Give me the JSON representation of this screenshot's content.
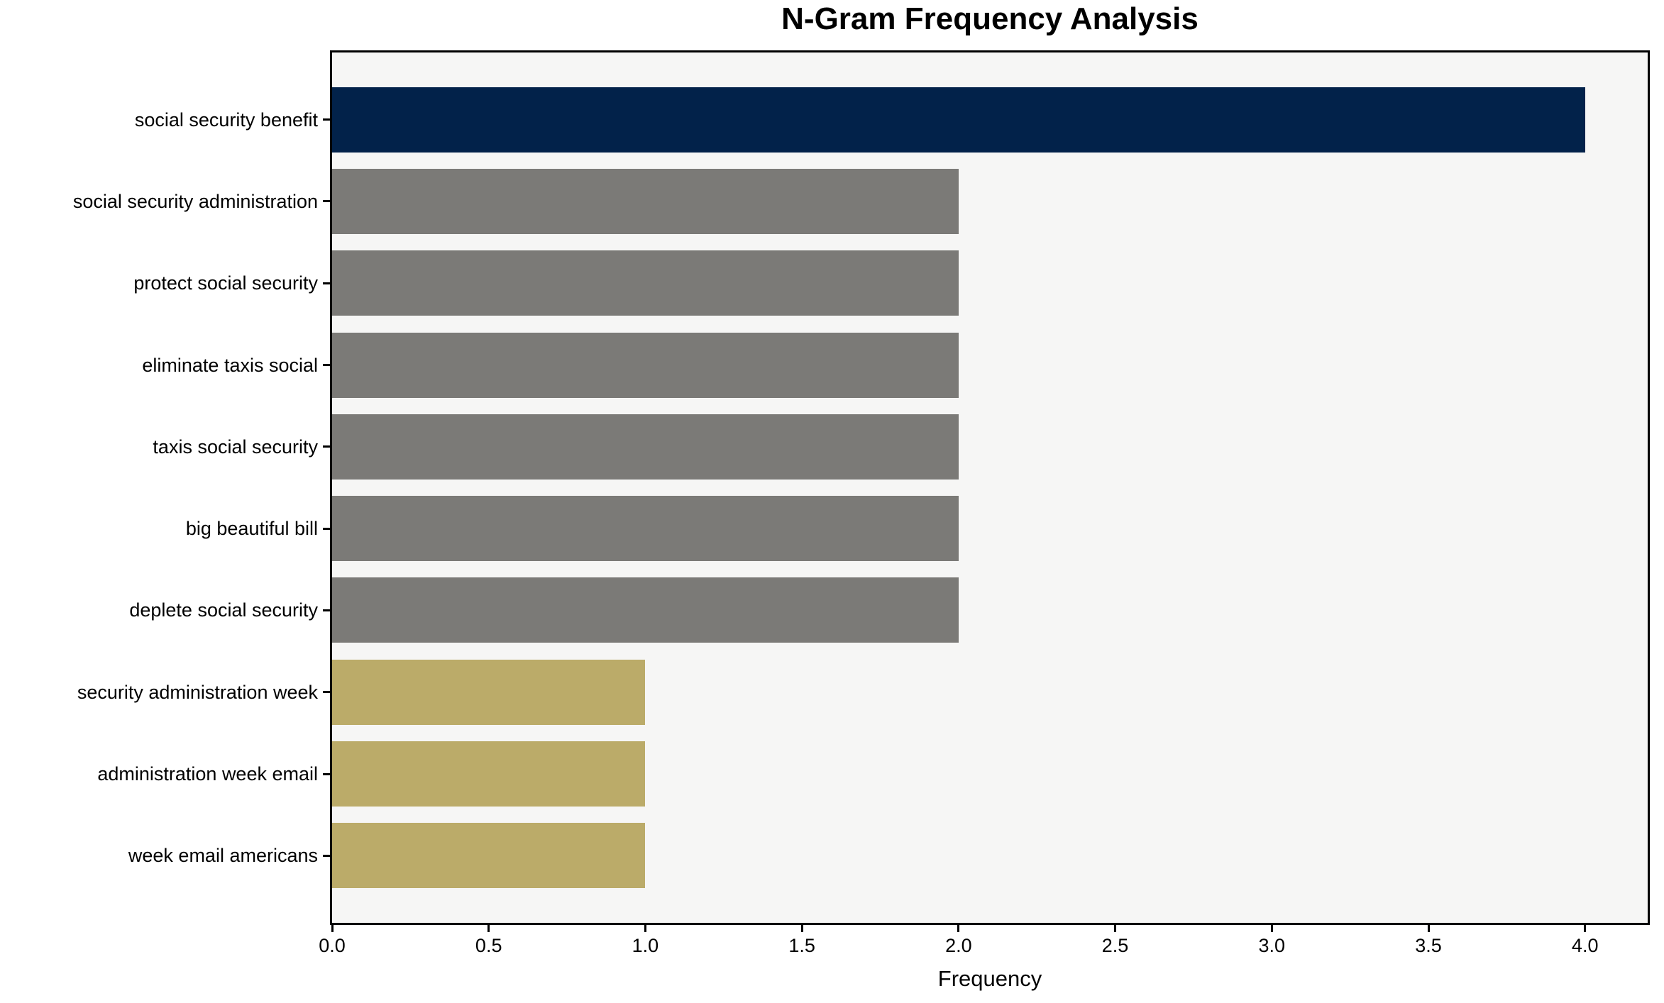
{
  "chart_data": {
    "type": "bar",
    "orientation": "horizontal",
    "title": "N-Gram Frequency Analysis",
    "xlabel": "Frequency",
    "ylabel": "",
    "categories": [
      "social security benefit",
      "social security administration",
      "protect social security",
      "eliminate taxis social",
      "taxis social security",
      "big beautiful bill",
      "deplete social security",
      "security administration week",
      "administration week email",
      "week email americans"
    ],
    "values": [
      4,
      2,
      2,
      2,
      2,
      2,
      2,
      1,
      1,
      1
    ],
    "bar_colors": [
      "#02224A",
      "#7B7A77",
      "#7B7A77",
      "#7B7A77",
      "#7B7A77",
      "#7B7A77",
      "#7B7A77",
      "#BBAB69",
      "#BBAB69",
      "#BBAB69"
    ],
    "xlim": [
      0,
      4.2
    ],
    "xticks": [
      0,
      0.5,
      1,
      1.5,
      2,
      2.5,
      3,
      3.5,
      4
    ],
    "xtick_labels": [
      "0.0",
      "0.5",
      "1.0",
      "1.5",
      "2.0",
      "2.5",
      "3.0",
      "3.5",
      "4.0"
    ],
    "grid": false,
    "legend_position": "none",
    "colors": {
      "plot_background": "#F6F6F5",
      "figure_background": "#FFFFFF",
      "frame": "#000000",
      "text": "#000000"
    }
  }
}
